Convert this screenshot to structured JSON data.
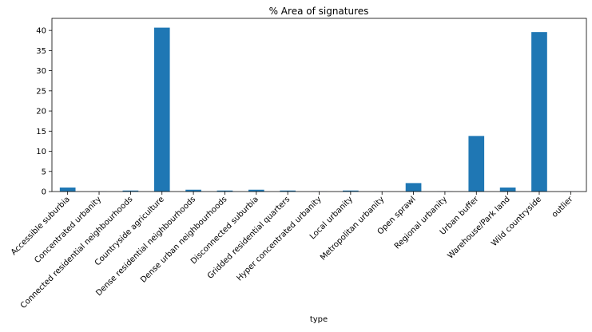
{
  "chart_data": {
    "type": "bar",
    "title": "% Area of signatures",
    "xlabel": "type",
    "ylabel": "",
    "ylim": [
      0,
      43
    ],
    "yticks": [
      0,
      5,
      10,
      15,
      20,
      25,
      30,
      35,
      40
    ],
    "grid": false,
    "legend": "none",
    "bar_color": "#1f77b4",
    "categories": [
      "Accessible suburbia",
      "Concentrated urbanity",
      "Connected residential neighbourhoods",
      "Countryside agriculture",
      "Dense residential neighbourhoods",
      "Dense urban neighbourhoods",
      "Disconnected suburbia",
      "Gridded residential quarters",
      "Hyper concentrated urbanity",
      "Local urbanity",
      "Metropolitan urbanity",
      "Open sprawl",
      "Regional urbanity",
      "Urban buffer",
      "Warehouse/Park land",
      "Wild countryside",
      "outlier"
    ],
    "values": [
      1.0,
      0.02,
      0.25,
      40.7,
      0.45,
      0.25,
      0.45,
      0.25,
      0.02,
      0.25,
      0.02,
      2.1,
      0.02,
      13.8,
      1.0,
      39.6,
      0.02
    ]
  }
}
